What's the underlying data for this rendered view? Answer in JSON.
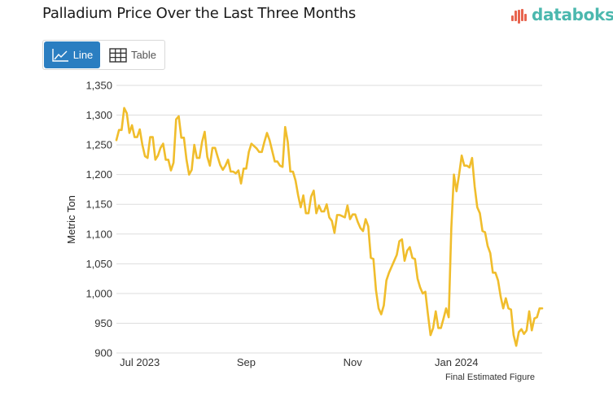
{
  "header": {
    "title": "Palladium Price Over the Last Three Months",
    "brand": "databoks",
    "brand_color": "#4bb8ae",
    "brand_accent_color": "#e8644e"
  },
  "view_toggle": {
    "line_label": "Line",
    "table_label": "Table",
    "active": "Line",
    "active_color": "#2b7ec1"
  },
  "chart_data": {
    "type": "line",
    "title": "Palladium Price Over the Last Three Months",
    "xlabel": "",
    "ylabel": "Metric Ton",
    "ylim": [
      900,
      1350
    ],
    "yticks": [
      900,
      950,
      1000,
      1050,
      1100,
      1150,
      1200,
      1250,
      1300,
      1350
    ],
    "ytick_labels": [
      "900",
      "950",
      "1,000",
      "1,050",
      "1,100",
      "1,150",
      "1,200",
      "1,250",
      "1,300",
      "1,350"
    ],
    "xtick_labels": [
      {
        "label": "Jul 2023",
        "index": 9
      },
      {
        "label": "Sep",
        "index": 50
      },
      {
        "label": "Nov",
        "index": 91
      },
      {
        "label": "Jan 2024",
        "index": 131
      }
    ],
    "grid": true,
    "legend": "none",
    "line_color": "#f0bd2c",
    "footnote": "Final Estimated Figure",
    "series": [
      {
        "name": "Palladium Price",
        "values": [
          1258,
          1275,
          1275,
          1312,
          1303,
          1270,
          1283,
          1263,
          1263,
          1276,
          1250,
          1231,
          1228,
          1263,
          1263,
          1225,
          1232,
          1245,
          1252,
          1225,
          1225,
          1207,
          1220,
          1293,
          1298,
          1262,
          1262,
          1225,
          1200,
          1208,
          1250,
          1228,
          1228,
          1255,
          1272,
          1230,
          1215,
          1245,
          1245,
          1230,
          1216,
          1208,
          1215,
          1225,
          1205,
          1205,
          1202,
          1207,
          1185,
          1210,
          1210,
          1238,
          1252,
          1248,
          1244,
          1238,
          1238,
          1255,
          1270,
          1258,
          1240,
          1222,
          1222,
          1215,
          1213,
          1280,
          1255,
          1205,
          1205,
          1190,
          1165,
          1145,
          1165,
          1135,
          1135,
          1163,
          1173,
          1135,
          1148,
          1138,
          1138,
          1150,
          1128,
          1122,
          1102,
          1132,
          1132,
          1130,
          1128,
          1148,
          1125,
          1133,
          1133,
          1120,
          1110,
          1105,
          1125,
          1113,
          1060,
          1058,
          1005,
          975,
          965,
          980,
          1022,
          1035,
          1045,
          1055,
          1065,
          1088,
          1091,
          1055,
          1072,
          1078,
          1060,
          1058,
          1025,
          1010,
          1000,
          1003,
          965,
          930,
          942,
          970,
          942,
          942,
          958,
          975,
          960,
          1110,
          1200,
          1172,
          1200,
          1232,
          1215,
          1215,
          1212,
          1228,
          1180,
          1145,
          1135,
          1105,
          1103,
          1080,
          1068,
          1035,
          1035,
          1022,
          995,
          975,
          992,
          975,
          973,
          930,
          912,
          935,
          940,
          932,
          938,
          970,
          938,
          958,
          960,
          975,
          975
        ]
      }
    ]
  }
}
